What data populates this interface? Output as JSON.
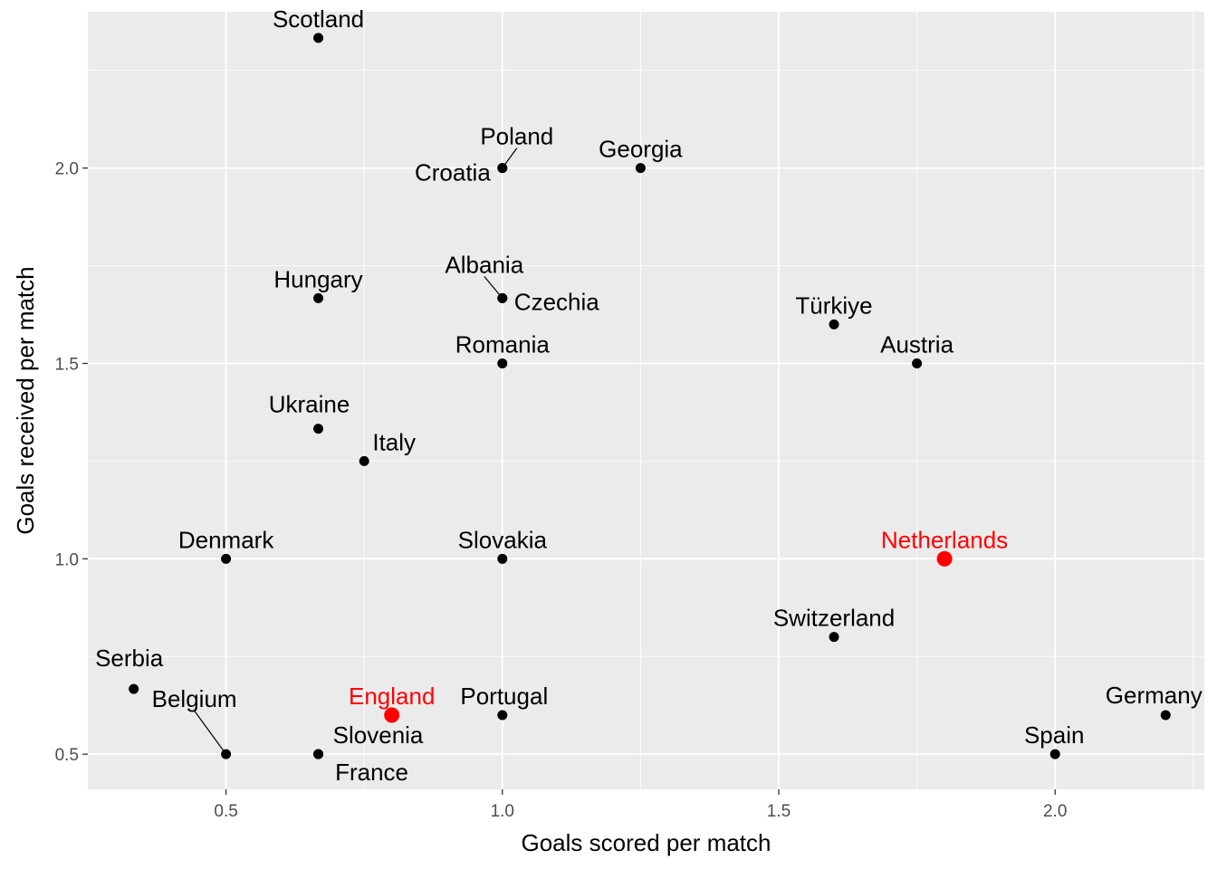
{
  "chart_data": {
    "type": "scatter",
    "title": "",
    "xlabel": "Goals scored per match",
    "ylabel": "Goals received per match",
    "xlim": [
      0.25,
      2.27
    ],
    "ylim": [
      0.41,
      2.4
    ],
    "xticks": [
      0.5,
      1.0,
      1.5,
      2.0
    ],
    "xtick_labels": [
      "0.5",
      "1.0",
      "1.5",
      "2.0"
    ],
    "yticks": [
      0.5,
      1.0,
      1.5,
      2.0
    ],
    "ytick_labels": [
      "0.5",
      "1.0",
      "1.5",
      "2.0"
    ],
    "grid": true,
    "colors": {
      "panel": "#ebebeb",
      "gridline": "#ffffff",
      "point": "#000000",
      "highlight": "#ff0000"
    },
    "points": [
      {
        "label": "Scotland",
        "x": 0.667,
        "y": 2.333,
        "highlight": false
      },
      {
        "label": "Poland",
        "x": 1.0,
        "y": 2.0,
        "highlight": false
      },
      {
        "label": "Croatia",
        "x": 1.0,
        "y": 2.0,
        "highlight": false
      },
      {
        "label": "Georgia",
        "x": 1.25,
        "y": 2.0,
        "highlight": false
      },
      {
        "label": "Hungary",
        "x": 0.667,
        "y": 1.667,
        "highlight": false
      },
      {
        "label": "Albania",
        "x": 1.0,
        "y": 1.667,
        "highlight": false
      },
      {
        "label": "Czechia",
        "x": 1.0,
        "y": 1.667,
        "highlight": false
      },
      {
        "label": "Türkiye",
        "x": 1.6,
        "y": 1.6,
        "highlight": false
      },
      {
        "label": "Romania",
        "x": 1.0,
        "y": 1.5,
        "highlight": false
      },
      {
        "label": "Austria",
        "x": 1.75,
        "y": 1.5,
        "highlight": false
      },
      {
        "label": "Ukraine",
        "x": 0.667,
        "y": 1.333,
        "highlight": false
      },
      {
        "label": "Italy",
        "x": 0.75,
        "y": 1.25,
        "highlight": false
      },
      {
        "label": "Denmark",
        "x": 0.5,
        "y": 1.0,
        "highlight": false
      },
      {
        "label": "Slovakia",
        "x": 1.0,
        "y": 1.0,
        "highlight": false
      },
      {
        "label": "Netherlands",
        "x": 1.8,
        "y": 1.0,
        "highlight": true
      },
      {
        "label": "Switzerland",
        "x": 1.6,
        "y": 0.8,
        "highlight": false
      },
      {
        "label": "Serbia",
        "x": 0.333,
        "y": 0.667,
        "highlight": false
      },
      {
        "label": "England",
        "x": 0.8,
        "y": 0.6,
        "highlight": true
      },
      {
        "label": "Portugal",
        "x": 1.0,
        "y": 0.6,
        "highlight": false
      },
      {
        "label": "Germany",
        "x": 2.2,
        "y": 0.6,
        "highlight": false
      },
      {
        "label": "Belgium",
        "x": 0.5,
        "y": 0.5,
        "highlight": false
      },
      {
        "label": "Slovenia",
        "x": 0.667,
        "y": 0.5,
        "highlight": false
      },
      {
        "label": "France",
        "x": 0.667,
        "y": 0.5,
        "highlight": false
      },
      {
        "label": "Spain",
        "x": 2.0,
        "y": 0.5,
        "highlight": false
      }
    ]
  }
}
